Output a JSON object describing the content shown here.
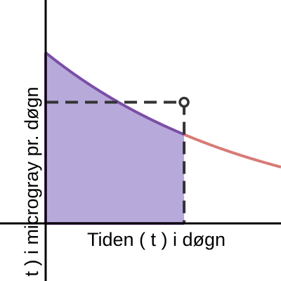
{
  "chart_data": {
    "type": "area",
    "xlabel": "Tiden ( t ) i døgn",
    "ylabel": "( t ) i microgray pr. døgn",
    "xlim": [
      0,
      1.7
    ],
    "ylim": [
      0,
      1.0
    ],
    "grid": false,
    "curve": {
      "form": "exponential-decay",
      "x": [
        0,
        0.25,
        0.5,
        0.75,
        1.0,
        1.25,
        1.5,
        1.7
      ],
      "y": [
        1.0,
        0.86,
        0.74,
        0.63,
        0.54,
        0.46,
        0.39,
        0.33
      ]
    },
    "shaded_area": {
      "x_from": 0,
      "x_to": 1.0
    },
    "reference_point": {
      "x": 1.0,
      "y": 0.71
    },
    "colors": {
      "curve_inside": "#7b4fa6",
      "curve_outside": "#d87a76",
      "fill": "#b8a9db",
      "reference": "#333333",
      "axes": "#000000"
    }
  }
}
